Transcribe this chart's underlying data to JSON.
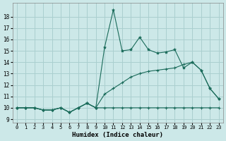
{
  "xlabel": "Humidex (Indice chaleur)",
  "background_color": "#cce8e8",
  "grid_color": "#aacfcf",
  "line_color": "#1a6b5a",
  "x_ticks": [
    0,
    1,
    2,
    3,
    4,
    5,
    6,
    7,
    8,
    9,
    10,
    11,
    12,
    13,
    14,
    15,
    16,
    17,
    18,
    19,
    20,
    21,
    22,
    23
  ],
  "y_ticks": [
    9,
    10,
    11,
    12,
    13,
    14,
    15,
    16,
    17,
    18
  ],
  "ylim": [
    8.7,
    19.2
  ],
  "xlim": [
    -0.5,
    23.5
  ],
  "line1_y": [
    10,
    10,
    10,
    9.8,
    9.8,
    10,
    9.6,
    10,
    10.4,
    10,
    10,
    10,
    10,
    10,
    10,
    10,
    10,
    10,
    10,
    10,
    10,
    10,
    10,
    10
  ],
  "line2_y": [
    10,
    10,
    10,
    9.8,
    9.8,
    10,
    9.6,
    10,
    10.4,
    10,
    11.2,
    11.7,
    12.2,
    12.7,
    13.0,
    13.2,
    13.3,
    13.4,
    13.5,
    13.8,
    14.0,
    13.3,
    11.7,
    10.8
  ],
  "line3_y": [
    10,
    10,
    10,
    9.8,
    9.8,
    10,
    9.6,
    10,
    10.4,
    10,
    15.3,
    18.6,
    15.0,
    15.1,
    16.2,
    15.1,
    14.8,
    14.9,
    15.1,
    13.5,
    14.0,
    13.3,
    11.7,
    10.8
  ]
}
